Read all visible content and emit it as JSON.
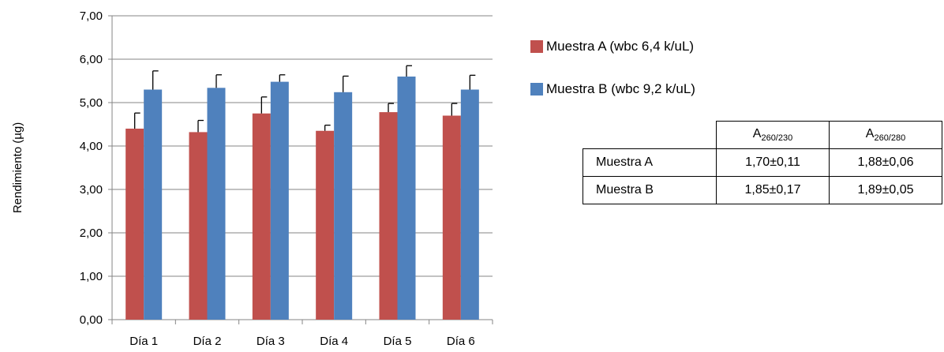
{
  "chart_data": {
    "type": "bar",
    "ylabel": "Rendimiento (µg)",
    "ylim": [
      0,
      7
    ],
    "yticks": [
      "0,00",
      "1,00",
      "2,00",
      "3,00",
      "4,00",
      "5,00",
      "6,00",
      "7,00"
    ],
    "categories": [
      "Día 1",
      "Día 2",
      "Día 3",
      "Día 4",
      "Día 5",
      "Día 6"
    ],
    "series": [
      {
        "name": "Muestra A (wbc 6,4 k/uL)",
        "color": "#c0504d",
        "values": [
          4.4,
          4.32,
          4.75,
          4.35,
          4.78,
          4.7
        ],
        "errors": [
          0.36,
          0.27,
          0.38,
          0.13,
          0.2,
          0.28
        ]
      },
      {
        "name": "Muestra B (wbc 9,2 k/uL)",
        "color": "#4f81bd",
        "values": [
          5.3,
          5.34,
          5.48,
          5.24,
          5.6,
          5.3
        ],
        "errors": [
          0.43,
          0.3,
          0.16,
          0.37,
          0.25,
          0.33
        ]
      }
    ],
    "grid": true,
    "legend": "right"
  },
  "table": {
    "header": [
      {
        "main": "A",
        "sub": "260/230"
      },
      {
        "main": "A",
        "sub": "260/280"
      }
    ],
    "rows": [
      {
        "label": "Muestra A",
        "v1": "1,70±0,11",
        "v2": "1,88±0,06"
      },
      {
        "label": "Muestra B",
        "v1": "1,85±0,17",
        "v2": "1,89±0,05"
      }
    ]
  }
}
